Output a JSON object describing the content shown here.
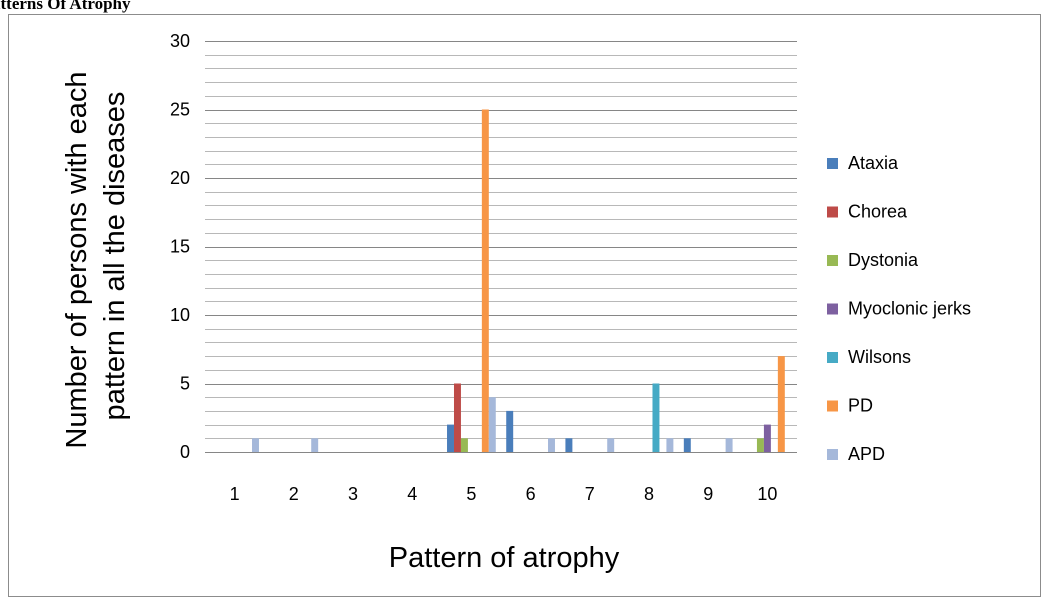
{
  "heading": "atterns Of Atrophy",
  "chart_data": {
    "type": "bar",
    "categories": [
      "1",
      "2",
      "3",
      "4",
      "5",
      "6",
      "7",
      "8",
      "9",
      "10"
    ],
    "series": [
      {
        "name": "Ataxia",
        "color": "#4a7ebb",
        "values": [
          0,
          0,
          0,
          0,
          2,
          3,
          1,
          0,
          1,
          0
        ]
      },
      {
        "name": "Chorea",
        "color": "#be4b48",
        "values": [
          0,
          0,
          0,
          0,
          5,
          0,
          0,
          0,
          0,
          0
        ]
      },
      {
        "name": "Dystonia",
        "color": "#98b954",
        "values": [
          0,
          0,
          0,
          0,
          1,
          0,
          0,
          0,
          0,
          1
        ]
      },
      {
        "name": "Myoclonic jerks",
        "color": "#7d60a0",
        "values": [
          0,
          0,
          0,
          0,
          0,
          0,
          0,
          0,
          0,
          2
        ]
      },
      {
        "name": "Wilsons",
        "color": "#46aac5",
        "values": [
          0,
          0,
          0,
          0,
          0,
          0,
          0,
          5,
          0,
          0
        ]
      },
      {
        "name": "PD",
        "color": "#f79646",
        "values": [
          0,
          0,
          0,
          0,
          25,
          0,
          0,
          0,
          0,
          7
        ]
      },
      {
        "name": "APD",
        "color": "#a5b8da",
        "values": [
          1,
          1,
          0,
          0,
          4,
          1,
          1,
          1,
          1,
          0
        ]
      }
    ],
    "xlabel": "Pattern of atrophy",
    "ylabel_lines": [
      "Number of persons with each",
      "pattern in all the  diseases"
    ],
    "ylim": [
      0,
      30
    ],
    "yticks": [
      "0",
      "5",
      "10",
      "15",
      "20",
      "25",
      "30"
    ],
    "major_step": 5,
    "minor_step": 1,
    "grid": true,
    "legend": "right"
  }
}
